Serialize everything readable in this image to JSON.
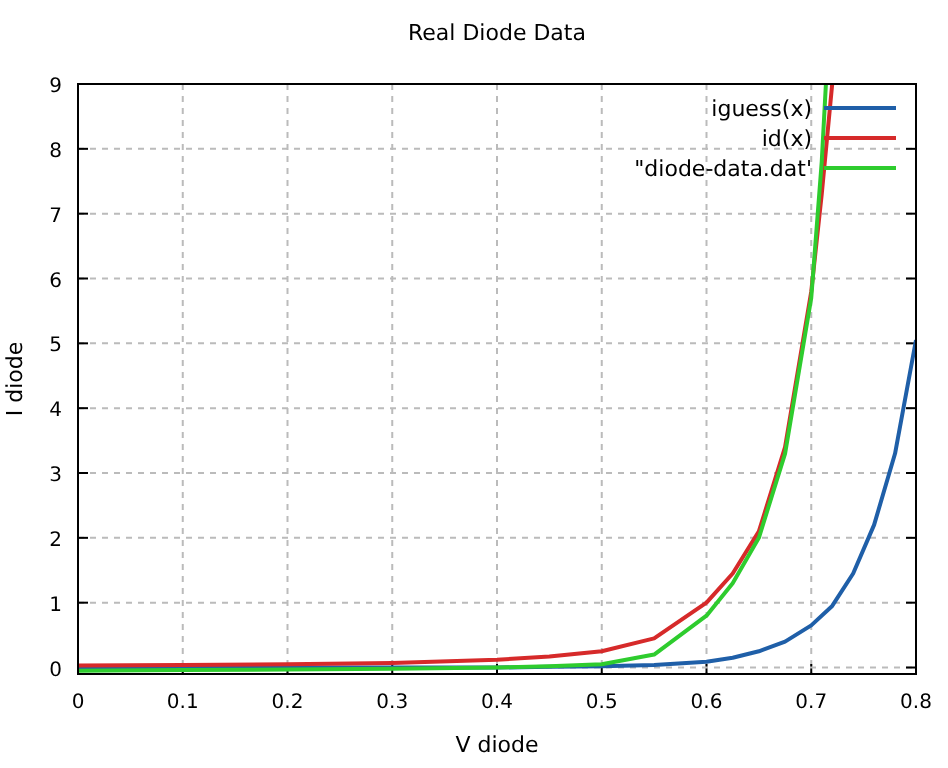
{
  "chart_data": {
    "type": "line",
    "title": "Real Diode Data",
    "xlabel": "V diode",
    "ylabel": "I diode",
    "xlim": [
      0,
      0.8
    ],
    "xticks": [
      0,
      0.1,
      0.2,
      0.3,
      0.4,
      0.5,
      0.6,
      0.7,
      0.8
    ],
    "ylim": [
      -0.1,
      9
    ],
    "yticks": [
      0,
      1,
      2,
      3,
      4,
      5,
      6,
      7,
      8,
      9
    ],
    "grid": true,
    "legend": "top right",
    "line_style": "solid",
    "series": [
      {
        "name": "iguess(x)",
        "color": "#1f5fa8",
        "x": [
          0,
          0.1,
          0.2,
          0.3,
          0.4,
          0.45,
          0.5,
          0.55,
          0.6,
          0.625,
          0.65,
          0.675,
          0.7,
          0.72,
          0.74,
          0.76,
          0.78,
          0.8
        ],
        "values": [
          0,
          0,
          0,
          0,
          0,
          0.01,
          0.02,
          0.04,
          0.09,
          0.15,
          0.25,
          0.4,
          0.65,
          0.95,
          1.45,
          2.2,
          3.3,
          5.05
        ]
      },
      {
        "name": "id(x)",
        "color": "#d62a2a",
        "x": [
          0,
          0.1,
          0.2,
          0.3,
          0.4,
          0.45,
          0.5,
          0.55,
          0.6,
          0.625,
          0.65,
          0.675,
          0.7,
          0.71,
          0.72
        ],
        "values": [
          0.03,
          0.04,
          0.05,
          0.07,
          0.12,
          0.17,
          0.25,
          0.45,
          1.0,
          1.45,
          2.1,
          3.4,
          5.8,
          7.3,
          9
        ]
      },
      {
        "name": "\"diode-data.dat'",
        "color": "#2ecc2e",
        "x": [
          0,
          0.1,
          0.2,
          0.3,
          0.4,
          0.45,
          0.5,
          0.55,
          0.6,
          0.625,
          0.65,
          0.675,
          0.7,
          0.71,
          0.714
        ],
        "values": [
          -0.05,
          -0.04,
          -0.03,
          -0.02,
          0,
          0.02,
          0.05,
          0.2,
          0.8,
          1.3,
          2.0,
          3.3,
          5.7,
          7.8,
          9
        ]
      }
    ]
  }
}
